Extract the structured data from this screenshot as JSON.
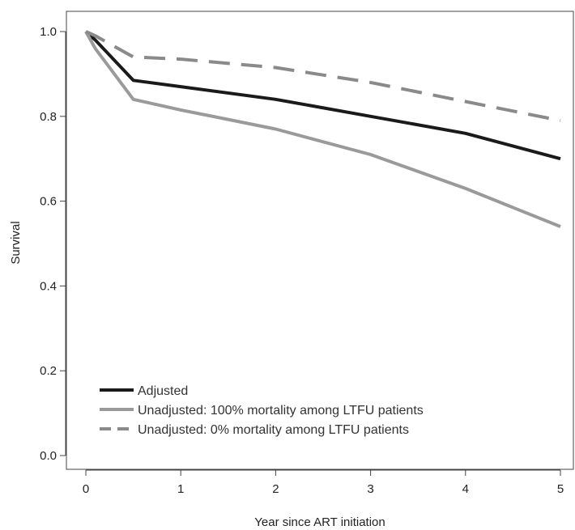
{
  "chart_data": {
    "type": "line",
    "title": "",
    "xlabel": "Year since ART initiation",
    "ylabel": "Survival",
    "xlim": [
      0,
      5
    ],
    "ylim": [
      0,
      1.0
    ],
    "x_ticks": [
      0,
      1,
      2,
      3,
      4,
      5
    ],
    "x_tick_labels": [
      "0",
      "1",
      "2",
      "3",
      "4",
      "5"
    ],
    "y_ticks": [
      0.0,
      0.2,
      0.4,
      0.6,
      0.8,
      1.0
    ],
    "y_tick_labels": [
      "0.0",
      "0.2",
      "0.4",
      "0.6",
      "0.8",
      "1.0"
    ],
    "grid": false,
    "legend_position": "bottom-left",
    "series": [
      {
        "name": "Adjusted",
        "color": "#1a1a1a",
        "style": "solid",
        "x": [
          0,
          0.1,
          0.5,
          1,
          2,
          3,
          4,
          5
        ],
        "y": [
          1.0,
          0.98,
          0.885,
          0.87,
          0.84,
          0.8,
          0.76,
          0.7
        ]
      },
      {
        "name": "Unadjusted: 100% mortality among LTFU patients",
        "color": "#9a9a9a",
        "style": "solid",
        "x": [
          0,
          0.1,
          0.5,
          1,
          2,
          3,
          4,
          5
        ],
        "y": [
          1.0,
          0.96,
          0.84,
          0.815,
          0.77,
          0.71,
          0.63,
          0.54
        ]
      },
      {
        "name": "Unadjusted: 0% mortality among LTFU patients",
        "color": "#8a8a8a",
        "style": "dashed",
        "x": [
          0,
          0.1,
          0.5,
          1,
          2,
          3,
          4,
          5
        ],
        "y": [
          1.0,
          0.99,
          0.94,
          0.935,
          0.915,
          0.88,
          0.835,
          0.79
        ]
      }
    ]
  }
}
